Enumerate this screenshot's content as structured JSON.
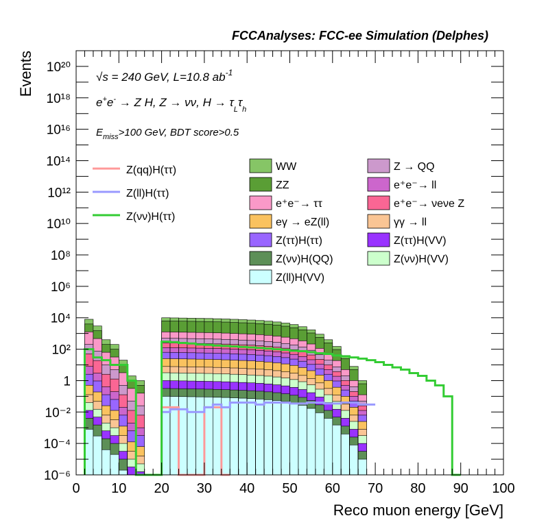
{
  "header_title": "FCCAnalyses: FCC-ee Simulation (Delphes)",
  "annotations": {
    "line1": "√s = 240 GeV, L=10.8 ab⁻¹",
    "line2": "e⁺e⁻ → Z H, Z → νν, H → τLτh",
    "line3": "Emiss>100 GeV, BDT score>0.5"
  },
  "chart_data": {
    "type": "area",
    "title": "FCCAnalyses: FCC-ee Simulation (Delphes)",
    "xlabel": "Reco muon energy [GeV]",
    "ylabel": "Events",
    "xlim": [
      0,
      100
    ],
    "ylim": [
      1e-06,
      1e+21
    ],
    "yscale": "log",
    "x_ticks": [
      "0",
      "10",
      "20",
      "30",
      "40",
      "50",
      "60",
      "70",
      "80",
      "90",
      "100"
    ],
    "y_ticks": [
      "10⁻⁶",
      "10⁻⁴",
      "10⁻²",
      "1",
      "10²",
      "10⁴",
      "10⁶",
      "10⁸",
      "10¹⁰",
      "10¹²",
      "10¹⁴",
      "10¹⁶",
      "10¹⁸",
      "10²⁰"
    ],
    "bin_width": 2,
    "legend_placement": "top-center",
    "stacked_totals": {
      "bin_edges_start": 2,
      "description": "approximate upper edge of full background stack per 2 GeV bin",
      "values": [
        8000,
        3000,
        400,
        200,
        20,
        2,
        1,
        0,
        0,
        10000,
        9800,
        9600,
        9400,
        9200,
        9000,
        8700,
        8400,
        8000,
        7600,
        7200,
        6700,
        6100,
        5400,
        4600,
        3700,
        2700,
        1700,
        900,
        400,
        150,
        40,
        8,
        1,
        0,
        0
      ]
    },
    "stacked_background": [
      {
        "name": "WW",
        "color": "#86c566",
        "values_note": "top layer, dominant at high energy"
      },
      {
        "name": "ZZ",
        "color": "#5a9e35"
      },
      {
        "name": "e⁺e⁻→ ττ",
        "color": "#fa99c8"
      },
      {
        "name": "eγ → eZ(ll)",
        "color": "#fac25f"
      },
      {
        "name": "Z(ττ)H(ττ)",
        "color": "#9966ff"
      },
      {
        "name": "Z(νν)H(QQ)",
        "color": "#5d8f57"
      },
      {
        "name": "Z(ll)H(VV)",
        "color": "#ccffff"
      },
      {
        "name": "Z → QQ",
        "color": "#cc99cc"
      },
      {
        "name": "e⁺e⁻→ ll",
        "color": "#cc66cc"
      },
      {
        "name": "e⁺e⁻→ νeνe Z",
        "color": "#fa6694"
      },
      {
        "name": "γγ → ll",
        "color": "#fac594"
      },
      {
        "name": "Z(ττ)H(VV)",
        "color": "#9933ff"
      },
      {
        "name": "Z(νν)H(VV)",
        "color": "#ccffcc"
      }
    ],
    "series": [
      {
        "name": "Z(qq)H(ττ)",
        "color": "#ff9999",
        "x": [
          20,
          24,
          24,
          30,
          30,
          34,
          34
        ],
        "y": [
          0.02,
          0.02,
          1e-06,
          1e-06,
          0.02,
          0.02,
          1e-06
        ]
      },
      {
        "name": "Z(ll)H(ττ)",
        "color": "#9999ff",
        "x": [
          20,
          22,
          24,
          26,
          28,
          30,
          32,
          34,
          36,
          38,
          40,
          42,
          44,
          46,
          48,
          50,
          52,
          54,
          56,
          58,
          60,
          62,
          64,
          66,
          68
        ],
        "y": [
          0.01,
          0.015,
          0.015,
          0.01,
          0.01,
          0.02,
          0.03,
          0.02,
          0.04,
          0.04,
          0.04,
          0.03,
          0.04,
          0.04,
          0.04,
          0.035,
          0.035,
          0.04,
          0.04,
          0.035,
          0.035,
          0.04,
          0.04,
          0.03,
          0.03
        ]
      },
      {
        "name": "Z(νν)H(ττ)",
        "color": "#33cc33",
        "x": [
          2,
          4,
          6,
          8,
          10,
          12,
          14,
          20,
          22,
          24,
          26,
          28,
          30,
          32,
          34,
          36,
          38,
          40,
          42,
          44,
          46,
          48,
          50,
          52,
          54,
          56,
          58,
          60,
          62,
          64,
          66,
          68,
          70,
          72,
          74,
          76,
          78,
          80,
          82,
          84,
          86,
          88
        ],
        "y": [
          100,
          30,
          20,
          10,
          10,
          1,
          1e-06,
          300,
          280,
          250,
          230,
          200,
          190,
          170,
          160,
          150,
          140,
          130,
          120,
          110,
          100,
          90,
          80,
          75,
          65,
          55,
          50,
          40,
          35,
          30,
          25,
          20,
          15,
          10,
          7,
          5,
          3,
          2,
          1,
          0.5,
          0.1,
          1e-06
        ]
      }
    ]
  }
}
